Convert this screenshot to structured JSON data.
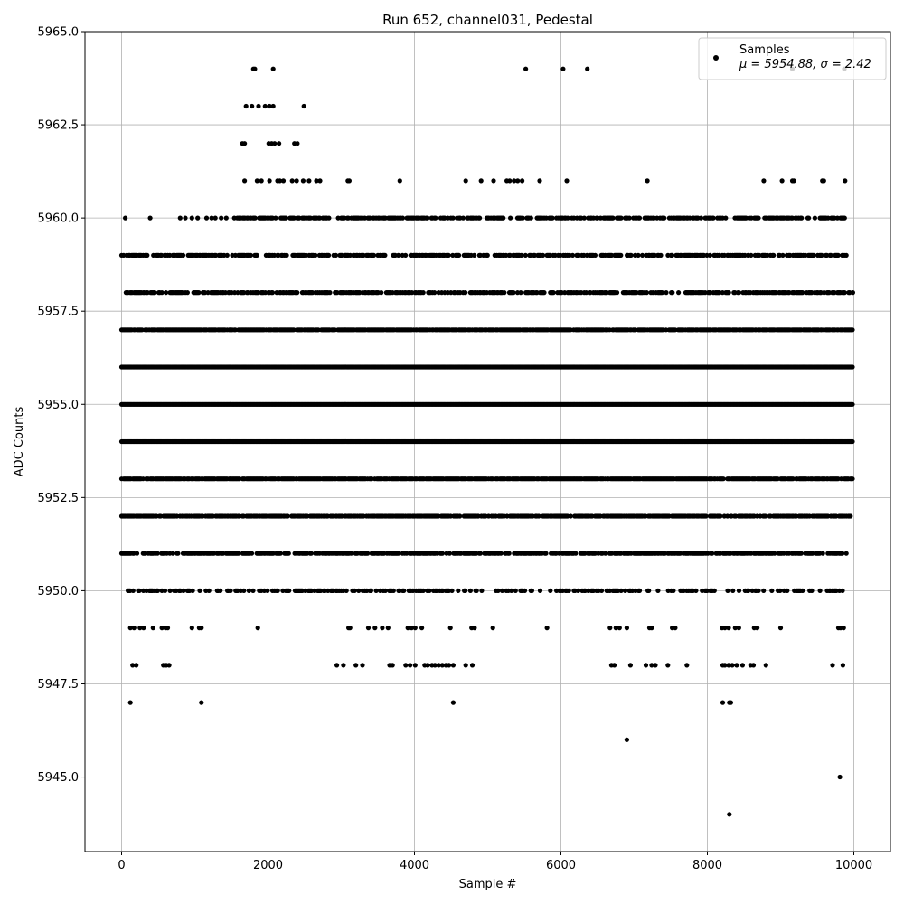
{
  "chart_data": {
    "type": "scatter",
    "title": "Run 652, channel031, Pedestal",
    "xlabel": "Sample #",
    "ylabel": "ADC Counts",
    "xlim": [
      -500,
      10500
    ],
    "ylim": [
      5943,
      5965
    ],
    "x_ticks": [
      0,
      2000,
      4000,
      6000,
      8000,
      10000
    ],
    "x_tick_labels": [
      "0",
      "2000",
      "4000",
      "6000",
      "8000",
      "10000"
    ],
    "y_ticks": [
      5945.0,
      5947.5,
      5950.0,
      5952.5,
      5955.0,
      5957.5,
      5960.0,
      5962.5,
      5965.0
    ],
    "y_tick_labels": [
      "5945.0",
      "5947.5",
      "5950.0",
      "5952.5",
      "5955.0",
      "5957.5",
      "5960.0",
      "5962.5",
      "5965.0"
    ],
    "grid": true,
    "legend": {
      "placement": "top-right",
      "entries": [
        {
          "label": "Samples",
          "stats": "μ = 5954.88, σ = 2.42"
        }
      ]
    },
    "series": [
      {
        "name": "Samples",
        "color": "#000000",
        "levels": [
          {
            "y": 5964,
            "x": [
              1800,
              1820,
              2070,
              5520,
              6030,
              6360,
              9160,
              9870
            ]
          },
          {
            "y": 5963,
            "x": [
              1700,
              1780,
              1870,
              1960,
              2020,
              2070,
              2490
            ]
          },
          {
            "y": 5962,
            "x": [
              1650,
              1680,
              2010,
              2050,
              2090,
              2150,
              2360,
              2400
            ]
          },
          {
            "y": 5961,
            "x": [
              1680,
              1850,
              1910,
              2020,
              2130,
              2160,
              2210,
              2330,
              2390,
              2480,
              2560,
              2660,
              2710,
              3090,
              3110,
              3800,
              4700,
              4910,
              5080,
              5260,
              5300,
              5360,
              5410,
              5470,
              5710,
              6080,
              7180,
              8770,
              9020,
              9160,
              9180,
              9570,
              9590,
              9880
            ]
          },
          {
            "y": 5960,
            "x": [
              50,
              390,
              800,
              870,
              960,
              1040,
              1160,
              1230,
              1280,
              1360,
              1430,
              1540,
              1580,
              1610
            ]
          },
          {
            "y": 5947,
            "x": [
              120,
              1090,
              4530,
              8210,
              8300,
              8320
            ]
          },
          {
            "y": 5946,
            "x": [
              6900
            ]
          },
          {
            "y": 5945,
            "x": [
              9810
            ]
          },
          {
            "y": 5944,
            "x": [
              8300
            ]
          },
          {
            "y": 5948,
            "x": [
              150,
              200,
              570,
              610,
              650,
              2940,
              3030,
              3200,
              3290,
              3660,
              3700,
              3880,
              3940,
              4010,
              4140,
              4180,
              4240,
              4280,
              4330,
              4380,
              4430,
              4470,
              4530,
              4700,
              4790,
              6690,
              6730,
              6950,
              7160,
              7240,
              7290,
              7460,
              7720,
              8210,
              8240,
              8290,
              8340,
              8400,
              8480,
              8590,
              8630,
              8800,
              9710,
              9850
            ]
          },
          {
            "y": 5949,
            "x": [
              120,
              170,
              250,
              300,
              430,
              550,
              600,
              630,
              960,
              1060,
              1090,
              1860,
              3100,
              3120,
              3370,
              3460,
              3560,
              3640,
              3910,
              3960,
              4010,
              4100,
              4490,
              4780,
              4820,
              5070,
              5810,
              6670,
              6750,
              6800,
              6900,
              7210,
              7240,
              7520,
              7560,
              8200,
              8240,
              8290,
              8380,
              8430,
              8640,
              8680,
              9000,
              9790,
              9820,
              9860
            ]
          }
        ],
        "bands": [
          {
            "y": 5960,
            "x_start": 1600,
            "x_end": 9900,
            "density": 0.55
          },
          {
            "y": 5959,
            "x_start": 0,
            "x_end": 9900,
            "density": 0.5
          },
          {
            "y": 5958,
            "x_start": 60,
            "x_end": 9990,
            "density": 0.6
          },
          {
            "y": 5957,
            "x_start": 0,
            "x_end": 9990,
            "density": 0.85
          },
          {
            "y": 5956,
            "x_start": 0,
            "x_end": 9990,
            "density": 1.0
          },
          {
            "y": 5955,
            "x_start": 0,
            "x_end": 9990,
            "density": 1.0
          },
          {
            "y": 5954,
            "x_start": 0,
            "x_end": 9990,
            "density": 1.0
          },
          {
            "y": 5953,
            "x_start": 0,
            "x_end": 9990,
            "density": 0.85
          },
          {
            "y": 5952,
            "x_start": 0,
            "x_end": 9990,
            "density": 0.7
          },
          {
            "y": 5951,
            "x_start": 0,
            "x_end": 9930,
            "density": 0.6
          },
          {
            "y": 5950,
            "x_start": 60,
            "x_end": 9860,
            "density": 0.32
          }
        ]
      }
    ]
  }
}
